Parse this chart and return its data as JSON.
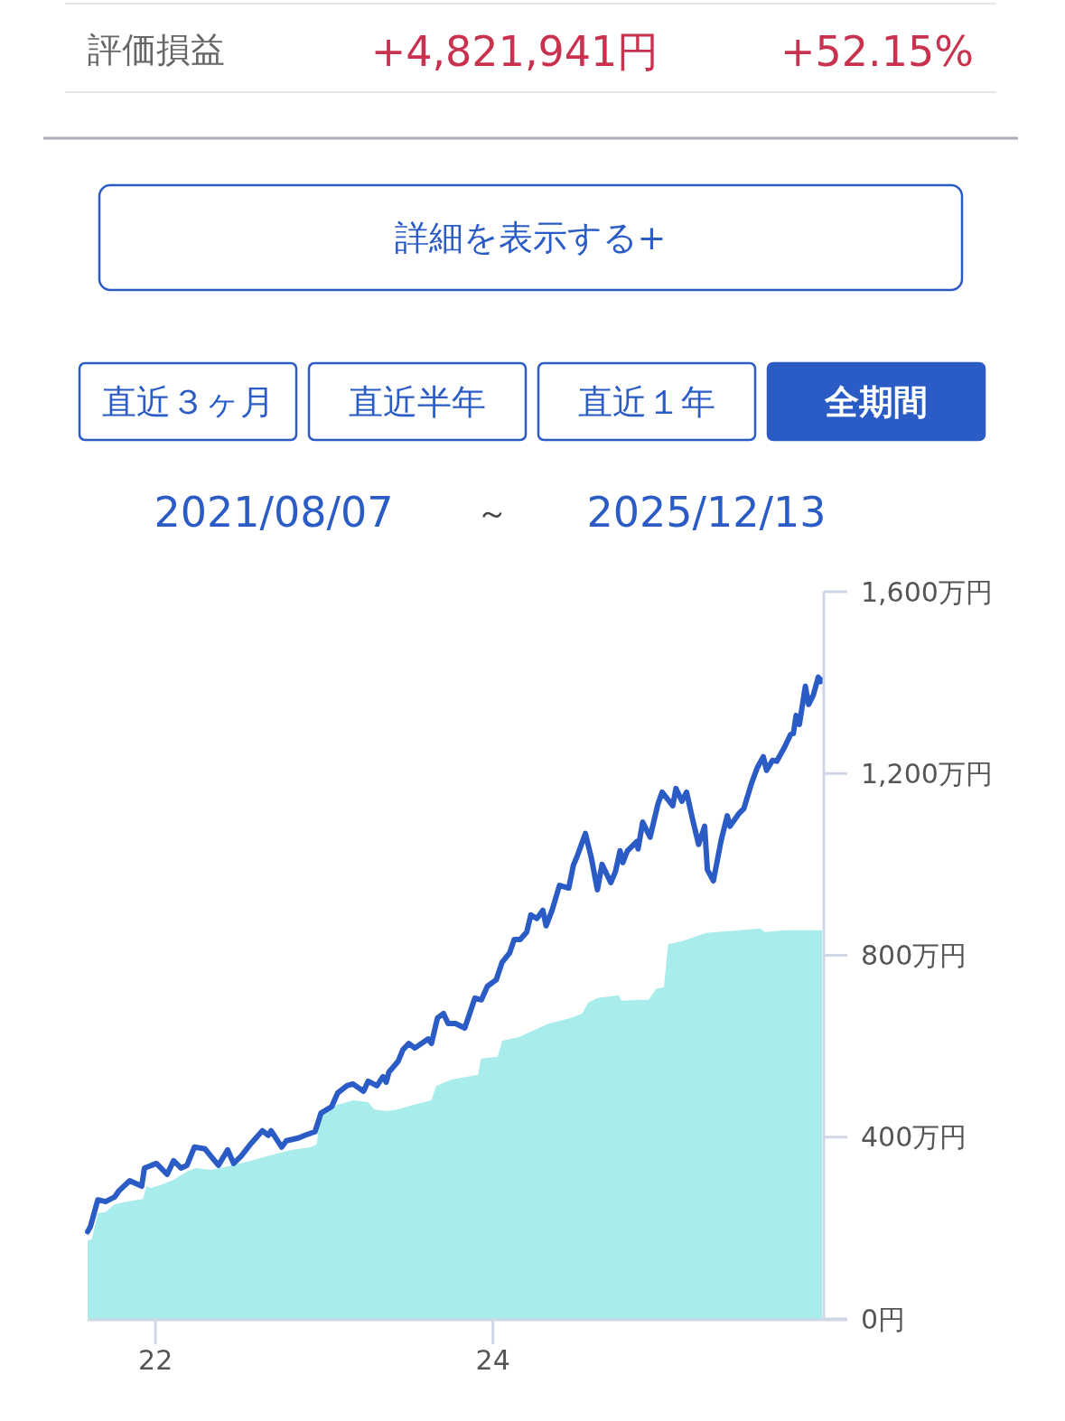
{
  "chart_data": {
    "type": "line",
    "annotations": [
      "評価損益",
      "+4,821,941円",
      "+52.15%",
      "詳細を表示する+",
      "直近３ヶ月",
      "直近半年",
      "直近１年",
      "全期間",
      "2021/08/07",
      "～",
      "2025/12/13"
    ],
    "xlim": [
      "2021-08-07",
      "2025-12-13"
    ],
    "xticks": [
      {
        "value": "2022-01-01",
        "label": "22"
      },
      {
        "value": "2024-01-01",
        "label": "24"
      }
    ],
    "ylim": [
      0,
      1600
    ],
    "yticks": [
      {
        "value": 0,
        "label": "0円"
      },
      {
        "value": 400,
        "label": "400万円"
      },
      {
        "value": 800,
        "label": "800万円"
      },
      {
        "value": 1200,
        "label": "1,200万円"
      },
      {
        "value": 1600,
        "label": "1,600万円"
      }
    ],
    "grid": false,
    "series": [
      {
        "type": "area",
        "color": "#a9ecec",
        "x": [
          "2021-08-07",
          "2021-08-16",
          "2021-08-29",
          "2021-09-15",
          "2021-10-04",
          "2021-10-30",
          "2021-12-05",
          "2021-12-12",
          "2021-12-22",
          "2022-01-10",
          "2022-02-05",
          "2022-03-10",
          "2022-03-29",
          "2022-05-01",
          "2022-06-16",
          "2022-07-25",
          "2022-09-15",
          "2022-10-24",
          "2022-12-03",
          "2022-12-16",
          "2022-12-22",
          "2023-01-17",
          "2023-03-04",
          "2023-04-06",
          "2023-04-19",
          "2023-05-15",
          "2023-06-10",
          "2023-07-13",
          "2023-08-21",
          "2023-08-31",
          "2023-10-05",
          "2023-11-30",
          "2023-12-06",
          "2024-01-11",
          "2024-01-21",
          "2024-02-26",
          "2024-03-23",
          "2024-05-01",
          "2024-06-16",
          "2024-07-12",
          "2024-07-25",
          "2024-08-14",
          "2024-09-29",
          "2024-10-05",
          "2024-11-13",
          "2024-12-03",
          "2024-12-19",
          "2025-01-05",
          "2025-01-14",
          "2025-02-13",
          "2025-04-06",
          "2025-06-17",
          "2025-08-02",
          "2025-08-11",
          "2025-09-23",
          "2025-12-13"
        ],
        "values": [
          173,
          175,
          233,
          235,
          252,
          258,
          264,
          292,
          288,
          294,
          304,
          324,
          332,
          328,
          338,
          348,
          362,
          372,
          378,
          384,
          443,
          467,
          481,
          477,
          461,
          457,
          461,
          471,
          481,
          513,
          527,
          537,
          573,
          577,
          612,
          620,
          632,
          650,
          662,
          672,
          696,
          706,
          712,
          700,
          702,
          702,
          726,
          730,
          825,
          831,
          849,
          855,
          859,
          851,
          855,
          855
        ]
      },
      {
        "type": "line",
        "color": "#2b5cc6",
        "x": [
          "2021-08-07",
          "2021-08-13",
          "2021-08-29",
          "2021-09-15",
          "2021-10-04",
          "2021-10-14",
          "2021-11-06",
          "2021-11-19",
          "2021-12-02",
          "2021-12-08",
          "2022-01-03",
          "2022-01-26",
          "2022-02-09",
          "2022-02-25",
          "2022-03-10",
          "2022-03-26",
          "2022-04-18",
          "2022-05-04",
          "2022-05-17",
          "2022-06-06",
          "2022-06-19",
          "2022-07-05",
          "2022-07-25",
          "2022-08-20",
          "2022-09-02",
          "2022-09-08",
          "2022-10-01",
          "2022-10-11",
          "2022-11-06",
          "2022-11-20",
          "2022-12-12",
          "2022-12-25",
          "2023-01-17",
          "2023-01-30",
          "2023-02-19",
          "2023-03-04",
          "2023-03-27",
          "2023-04-06",
          "2023-04-25",
          "2023-05-08",
          "2023-05-15",
          "2023-05-21",
          "2023-06-10",
          "2023-06-20",
          "2023-07-03",
          "2023-07-16",
          "2023-08-14",
          "2023-08-21",
          "2023-09-03",
          "2023-09-16",
          "2023-09-26",
          "2023-10-12",
          "2023-11-01",
          "2023-11-23",
          "2023-12-07",
          "2023-12-20",
          "2024-01-08",
          "2024-01-21",
          "2024-02-06",
          "2024-02-16",
          "2024-02-29",
          "2024-03-14",
          "2024-03-23",
          "2024-04-05",
          "2024-04-18",
          "2024-04-25",
          "2024-05-08",
          "2024-05-24",
          "2024-06-13",
          "2024-06-23",
          "2024-07-02",
          "2024-07-19",
          "2024-08-01",
          "2024-08-14",
          "2024-08-24",
          "2024-09-12",
          "2024-09-22",
          "2024-10-02",
          "2024-10-08",
          "2024-10-18",
          "2024-11-07",
          "2024-11-10",
          "2024-11-20",
          "2024-12-06",
          "2024-12-23",
          "2025-01-01",
          "2025-01-24",
          "2025-01-31",
          "2025-02-13",
          "2025-02-23",
          "2025-03-08",
          "2025-03-21",
          "2025-04-03",
          "2025-04-09",
          "2025-04-22",
          "2025-05-09",
          "2025-05-22",
          "2025-05-28",
          "2025-06-17",
          "2025-06-27",
          "2025-07-13",
          "2025-07-26",
          "2025-08-08",
          "2025-08-15",
          "2025-08-28",
          "2025-09-06",
          "2025-09-23",
          "2025-10-06",
          "2025-10-12",
          "2025-10-18",
          "2025-10-25",
          "2025-11-07",
          "2025-11-14",
          "2025-11-24",
          "2025-12-05",
          "2025-12-10",
          "2025-12-13"
        ],
        "values": [
          192,
          203,
          262,
          258,
          268,
          282,
          304,
          298,
          292,
          332,
          342,
          318,
          348,
          332,
          338,
          378,
          374,
          354,
          338,
          372,
          342,
          358,
          384,
          414,
          404,
          414,
          378,
          392,
          398,
          404,
          412,
          453,
          467,
          497,
          513,
          517,
          501,
          523,
          513,
          533,
          521,
          543,
          567,
          592,
          606,
          596,
          616,
          606,
          662,
          672,
          650,
          650,
          640,
          706,
          702,
          732,
          746,
          785,
          805,
          835,
          835,
          851,
          889,
          881,
          899,
          865,
          899,
          954,
          948,
          998,
          1020,
          1068,
          1014,
          944,
          1000,
          960,
          984,
          1030,
          1004,
          1030,
          1050,
          1034,
          1093,
          1060,
          1133,
          1159,
          1129,
          1167,
          1139,
          1159,
          1099,
          1044,
          1084,
          988,
          964,
          1054,
          1107,
          1084,
          1113,
          1123,
          1177,
          1213,
          1237,
          1207,
          1229,
          1227,
          1258,
          1286,
          1288,
          1328,
          1308,
          1392,
          1352,
          1372,
          1412,
          1402,
          1406
        ]
      }
    ]
  }
}
